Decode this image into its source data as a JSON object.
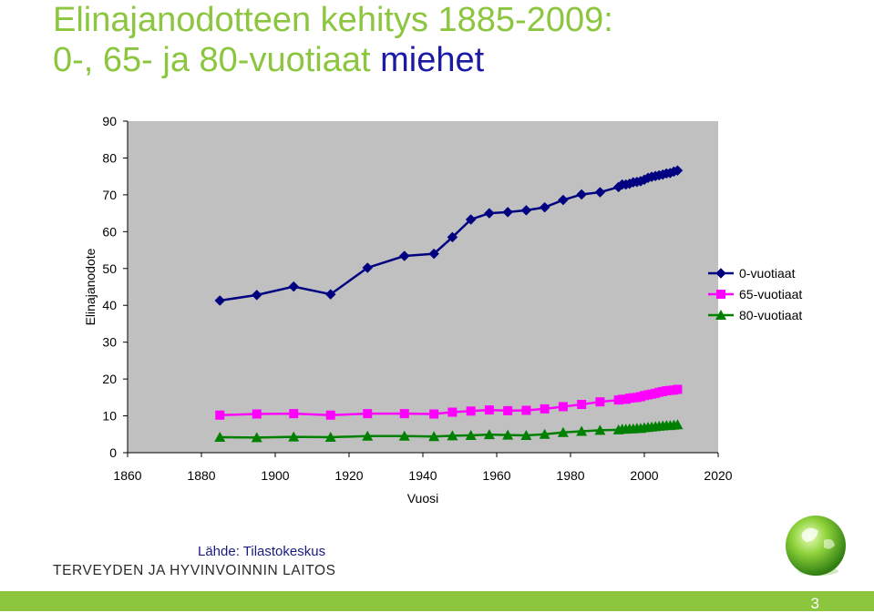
{
  "header": {
    "title_line1": "Elinajanodotteen kehitys 1885-2009:",
    "title_line2_prefix": "0-, 65- ja 80-vuotiaat",
    "title_line2_highlight": "miehet"
  },
  "chart_data": {
    "type": "line",
    "title": "",
    "xlabel": "Vuosi",
    "ylabel": "Elinajanodote",
    "xlim": [
      1860,
      2020
    ],
    "ylim": [
      0,
      90
    ],
    "xticks": [
      1860,
      1880,
      1900,
      1920,
      1940,
      1960,
      1980,
      2000,
      2020
    ],
    "yticks": [
      0,
      10,
      20,
      30,
      40,
      50,
      60,
      70,
      80,
      90
    ],
    "grid": false,
    "plot_background": "#c0c0c0",
    "legend_position": "right",
    "series": [
      {
        "name": "0-vuotiaat",
        "color": "#000080",
        "marker": "diamond",
        "points": [
          [
            1885,
            41.3
          ],
          [
            1895,
            42.8
          ],
          [
            1905,
            45.1
          ],
          [
            1915,
            43.0
          ],
          [
            1925,
            50.2
          ],
          [
            1935,
            53.4
          ],
          [
            1943,
            54.0
          ],
          [
            1948,
            58.5
          ],
          [
            1953,
            63.3
          ],
          [
            1958,
            65.0
          ],
          [
            1963,
            65.3
          ],
          [
            1968,
            65.8
          ],
          [
            1973,
            66.6
          ],
          [
            1978,
            68.6
          ],
          [
            1983,
            70.1
          ],
          [
            1988,
            70.7
          ],
          [
            1993,
            72.1
          ],
          [
            1994,
            72.8
          ],
          [
            1995,
            72.8
          ],
          [
            1996,
            73.0
          ],
          [
            1997,
            73.4
          ],
          [
            1998,
            73.5
          ],
          [
            1999,
            73.7
          ],
          [
            2000,
            74.1
          ],
          [
            2001,
            74.6
          ],
          [
            2002,
            74.9
          ],
          [
            2003,
            75.1
          ],
          [
            2004,
            75.3
          ],
          [
            2005,
            75.5
          ],
          [
            2006,
            75.8
          ],
          [
            2007,
            75.9
          ],
          [
            2008,
            76.3
          ],
          [
            2009,
            76.6
          ]
        ]
      },
      {
        "name": "65-vuotiaat",
        "color": "#ff00ff",
        "marker": "square",
        "points": [
          [
            1885,
            10.2
          ],
          [
            1895,
            10.5
          ],
          [
            1905,
            10.6
          ],
          [
            1915,
            10.2
          ],
          [
            1925,
            10.6
          ],
          [
            1935,
            10.6
          ],
          [
            1943,
            10.5
          ],
          [
            1948,
            11.0
          ],
          [
            1953,
            11.3
          ],
          [
            1958,
            11.6
          ],
          [
            1963,
            11.4
          ],
          [
            1968,
            11.5
          ],
          [
            1973,
            11.9
          ],
          [
            1978,
            12.5
          ],
          [
            1983,
            13.1
          ],
          [
            1988,
            13.8
          ],
          [
            1993,
            14.3
          ],
          [
            1994,
            14.5
          ],
          [
            1995,
            14.5
          ],
          [
            1996,
            14.8
          ],
          [
            1997,
            14.9
          ],
          [
            1998,
            15.0
          ],
          [
            1999,
            15.2
          ],
          [
            2000,
            15.5
          ],
          [
            2001,
            15.7
          ],
          [
            2002,
            15.9
          ],
          [
            2003,
            16.1
          ],
          [
            2004,
            16.4
          ],
          [
            2005,
            16.6
          ],
          [
            2006,
            16.8
          ],
          [
            2007,
            16.9
          ],
          [
            2008,
            17.0
          ],
          [
            2009,
            17.2
          ]
        ]
      },
      {
        "name": "80-vuotiaat",
        "color": "#008000",
        "marker": "triangle",
        "points": [
          [
            1885,
            4.2
          ],
          [
            1895,
            4.1
          ],
          [
            1905,
            4.3
          ],
          [
            1915,
            4.2
          ],
          [
            1925,
            4.5
          ],
          [
            1935,
            4.5
          ],
          [
            1943,
            4.4
          ],
          [
            1948,
            4.6
          ],
          [
            1953,
            4.7
          ],
          [
            1958,
            4.9
          ],
          [
            1963,
            4.8
          ],
          [
            1968,
            4.7
          ],
          [
            1973,
            5.0
          ],
          [
            1978,
            5.5
          ],
          [
            1983,
            5.8
          ],
          [
            1988,
            6.1
          ],
          [
            1993,
            6.2
          ],
          [
            1994,
            6.4
          ],
          [
            1995,
            6.4
          ],
          [
            1996,
            6.5
          ],
          [
            1997,
            6.5
          ],
          [
            1998,
            6.6
          ],
          [
            1999,
            6.6
          ],
          [
            2000,
            6.8
          ],
          [
            2001,
            6.9
          ],
          [
            2002,
            7.0
          ],
          [
            2003,
            7.1
          ],
          [
            2004,
            7.2
          ],
          [
            2005,
            7.3
          ],
          [
            2006,
            7.4
          ],
          [
            2007,
            7.4
          ],
          [
            2008,
            7.5
          ],
          [
            2009,
            7.6
          ]
        ]
      }
    ]
  },
  "footer": {
    "source": "Lähde: Tilastokeskus",
    "organization": "TERVEYDEN JA HYVINVOINNIN LAITOS",
    "page_number": "3",
    "bar_color": "#8cc63f",
    "logo_icon": "green-sphere-logo-icon"
  }
}
